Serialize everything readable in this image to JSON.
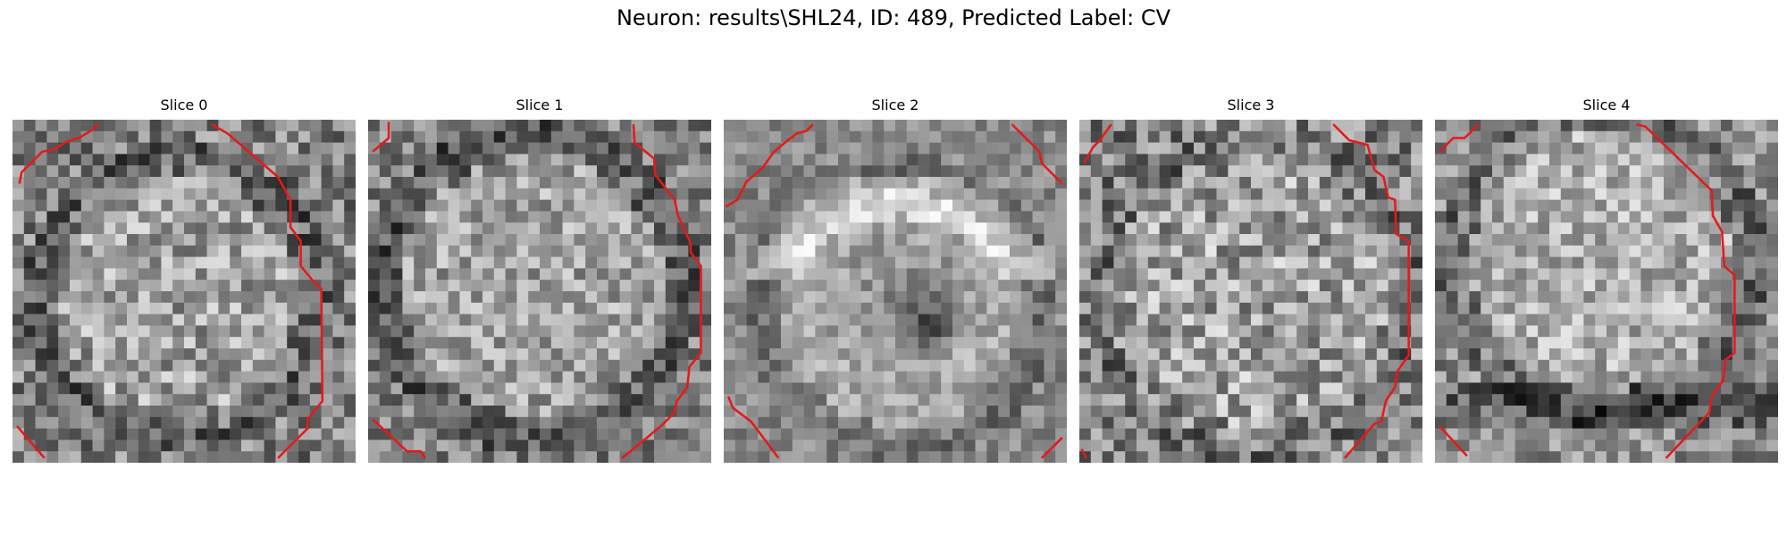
{
  "figure": {
    "title": "Neuron: results\\SHL24, ID: 489, Predicted Label: CV"
  },
  "colors": {
    "contour": "#e41a1c",
    "background": "#ffffff"
  },
  "panels": [
    {
      "title": "Slice 0"
    },
    {
      "title": "Slice 1"
    },
    {
      "title": "Slice 2"
    },
    {
      "title": "Slice 3"
    },
    {
      "title": "Slice 4"
    }
  ]
}
